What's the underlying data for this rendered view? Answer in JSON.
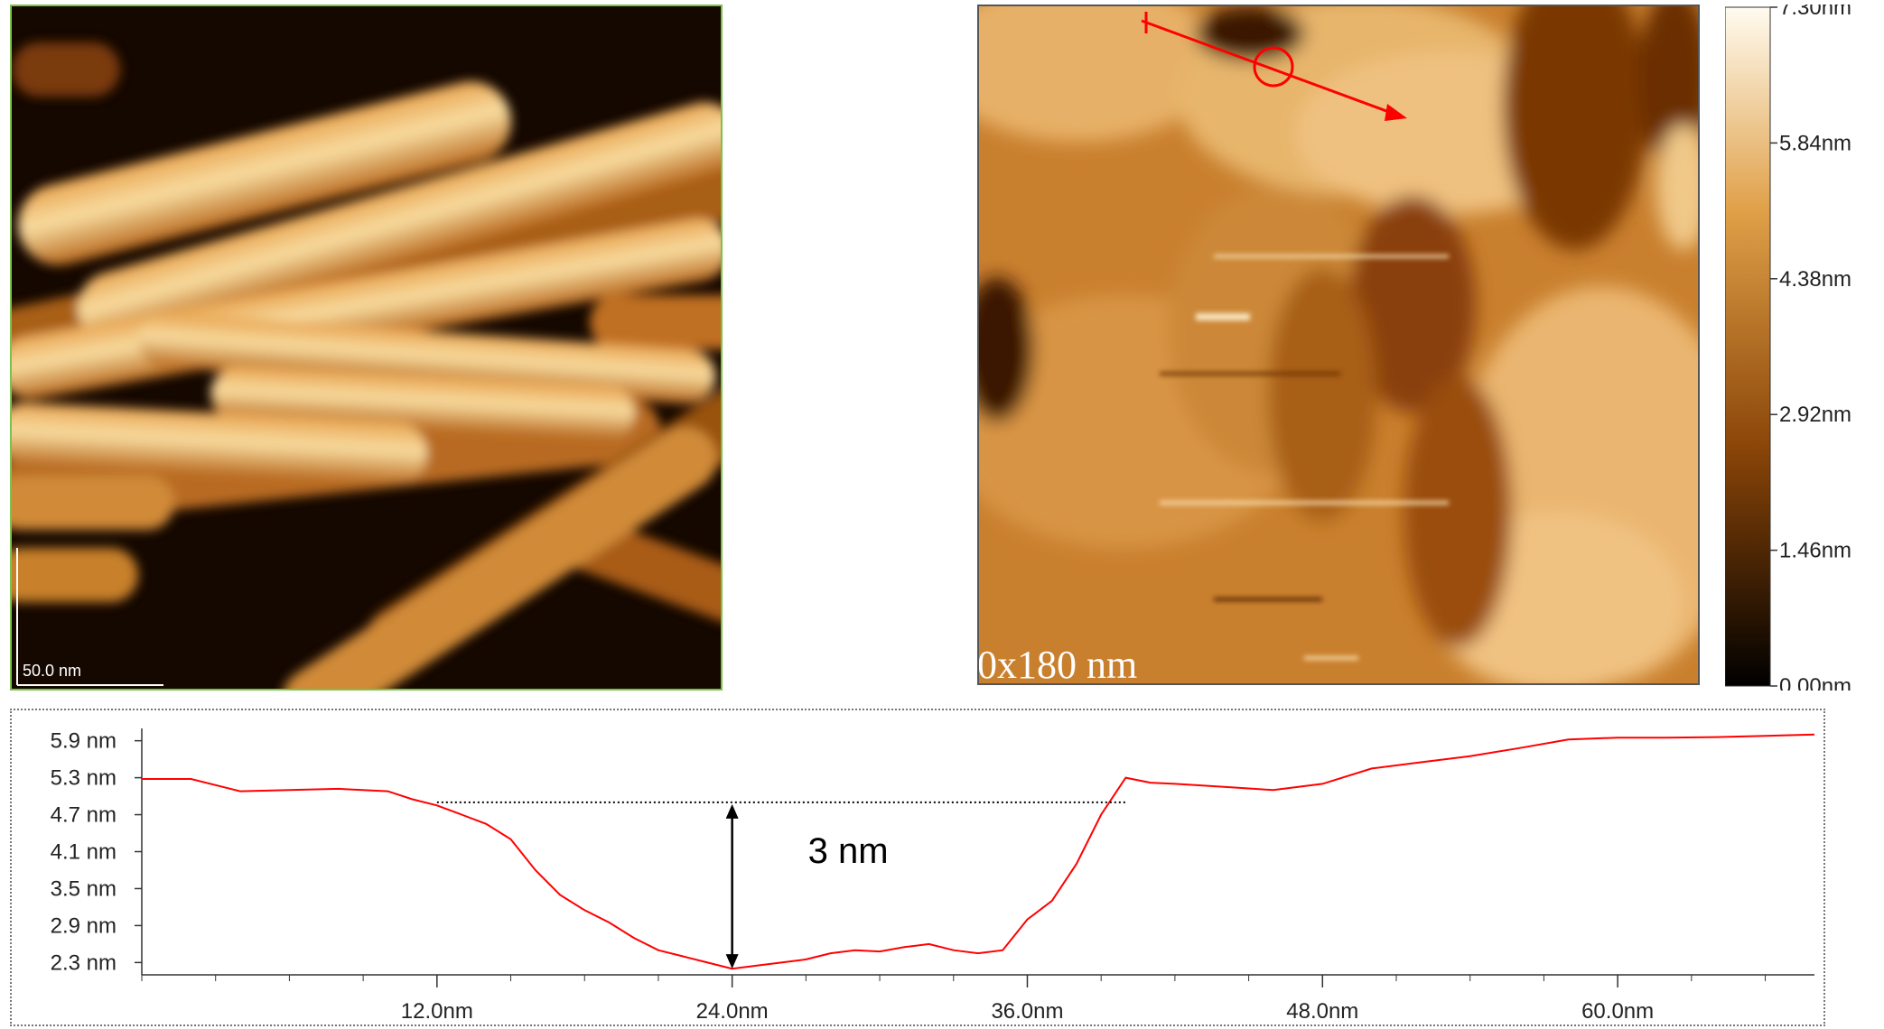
{
  "left_image": {
    "scale_bar_label": "50.0 nm"
  },
  "right_image": {
    "size_label": "0x180 nm"
  },
  "colorbar": {
    "ticks": [
      "7.30nm",
      "5.84nm",
      "4.38nm",
      "2.92nm",
      "1.46nm",
      "0.00nm"
    ],
    "colors": [
      "#fffbf0",
      "#e0a048",
      "#8a4508",
      "#000000"
    ]
  },
  "chart_data": {
    "type": "line",
    "title": "",
    "xlabel": "",
    "ylabel": "",
    "xlim": [
      0,
      68
    ],
    "ylim": [
      2.1,
      6.1
    ],
    "x_ticks": [
      "12.0nm",
      "24.0nm",
      "36.0nm",
      "48.0nm",
      "60.0nm"
    ],
    "x_tick_values": [
      12,
      24,
      36,
      48,
      60
    ],
    "y_ticks": [
      "5.9 nm",
      "5.3 nm",
      "4.7 nm",
      "4.1 nm",
      "3.5 nm",
      "2.9 nm",
      "2.3 nm"
    ],
    "y_tick_values": [
      5.9,
      5.3,
      4.7,
      4.1,
      3.5,
      2.9,
      2.3
    ],
    "series": [
      {
        "color": "#ff0000",
        "x": [
          0,
          2,
          4,
          6,
          8,
          10,
          11,
          12,
          13,
          14,
          15,
          16,
          17,
          18,
          19,
          20,
          21,
          22,
          23,
          24,
          25,
          26,
          27,
          28,
          29,
          30,
          31,
          32,
          33,
          34,
          35,
          36,
          37,
          38,
          39,
          40,
          41,
          42,
          44,
          46,
          48,
          50,
          52,
          54,
          56,
          58,
          60,
          62,
          64,
          66,
          68
        ],
        "y": [
          5.28,
          5.28,
          5.08,
          5.1,
          5.12,
          5.08,
          4.95,
          4.85,
          4.7,
          4.55,
          4.3,
          3.8,
          3.4,
          3.15,
          2.95,
          2.7,
          2.5,
          2.4,
          2.3,
          2.2,
          2.25,
          2.3,
          2.35,
          2.45,
          2.5,
          2.48,
          2.55,
          2.6,
          2.5,
          2.45,
          2.5,
          3.0,
          3.3,
          3.9,
          4.7,
          5.3,
          5.22,
          5.2,
          5.15,
          5.1,
          5.2,
          5.45,
          5.55,
          5.65,
          5.78,
          5.92,
          5.95,
          5.95,
          5.96,
          5.98,
          6.0
        ]
      }
    ],
    "annotation": {
      "label": "3 nm",
      "reference_level": 4.9,
      "bottom_level": 2.2,
      "x": 24.0,
      "reference_from": 12,
      "reference_to": 40
    }
  }
}
